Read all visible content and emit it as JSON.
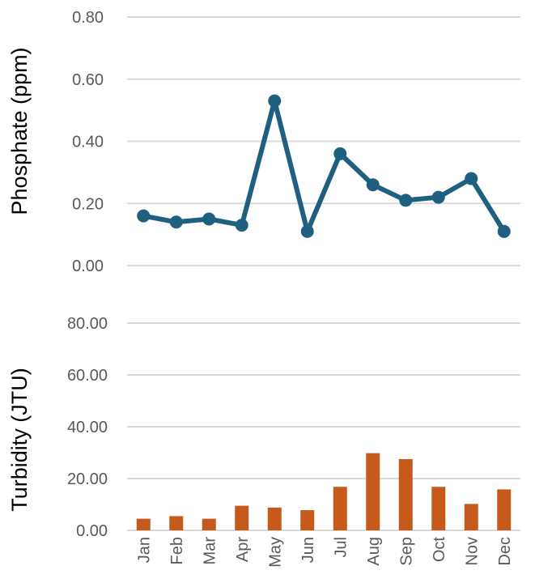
{
  "chart_data": [
    {
      "type": "line",
      "ylabel": "Phosphate (ppm)",
      "xlabel": "",
      "title": "",
      "categories": [
        "Jan",
        "Feb",
        "Mar",
        "Apr",
        "May",
        "Jun",
        "Jul",
        "Aug",
        "Sep",
        "Oct",
        "Nov",
        "Dec"
      ],
      "series": [
        {
          "values": [
            0.16,
            0.14,
            0.15,
            0.13,
            0.53,
            0.11,
            0.36,
            0.26,
            0.21,
            0.22,
            0.28,
            0.11
          ]
        }
      ],
      "ylim": [
        0,
        0.8
      ],
      "yticks": [
        "0.00",
        "0.20",
        "0.40",
        "0.60",
        "0.80"
      ],
      "grid": true,
      "color": "#1f5f7f"
    },
    {
      "type": "bar",
      "ylabel": "Turbidity (JTU)",
      "xlabel": "",
      "title": "",
      "categories": [
        "Jan",
        "Feb",
        "Mar",
        "Apr",
        "May",
        "Jun",
        "Jul",
        "Aug",
        "Sep",
        "Oct",
        "Nov",
        "Dec"
      ],
      "series": [
        {
          "values": [
            4.5,
            5.5,
            4.5,
            9.5,
            8.8,
            7.8,
            16.8,
            29.8,
            27.5,
            16.8,
            10.2,
            15.8
          ]
        }
      ],
      "ylim": [
        0,
        80
      ],
      "yticks": [
        "0.00",
        "20.00",
        "40.00",
        "60.00",
        "80.00"
      ],
      "grid": true,
      "color": "#c55a1b"
    }
  ]
}
